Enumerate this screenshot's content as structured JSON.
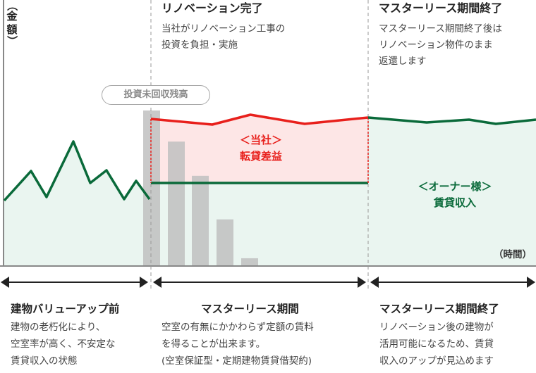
{
  "axis": {
    "y_label": "（金額）",
    "x_label": "（時間）"
  },
  "phases_top": [
    {
      "title": "リノベーション完了",
      "description": "当社がリノベーション工事の\n投資を負担・実施"
    },
    {
      "title": "マスターリース期間終了",
      "description": "マスターリース期間終了後は\nリノベーション物件のまま\n返還します"
    }
  ],
  "bars": {
    "label": "投資未回収残高",
    "values": [
      100,
      80,
      58,
      30,
      5
    ]
  },
  "labels": {
    "company": {
      "line1": "＜当社＞",
      "line2": "転貸差益"
    },
    "owner": {
      "line1": "＜オーナー様＞",
      "line2": "賃貸収入"
    }
  },
  "periods": [
    {
      "title": "建物バリューアップ前",
      "description": "建物の老朽化により、\n空室率が高く、不安定な\n賃貸収入の状態"
    },
    {
      "title": "マスターリース期間",
      "description": "空室の有無にかかわらず定額の賃料\nを得ることが出来ます。\n(空室保証型・定期建物賃貸借契約)"
    },
    {
      "title": "マスターリース期間終了",
      "description": "リノベーション後の建物が\n活用可能になるため、賃貸\n収入のアップが見込めます"
    }
  ],
  "colors": {
    "red": "#e8201c",
    "green": "#0a6a3a",
    "red_fill": "#fde6e6",
    "green_fill": "#eaf5f0",
    "bar": "#c0c0c0",
    "divider": "#999999",
    "arrow": "#222222"
  }
}
